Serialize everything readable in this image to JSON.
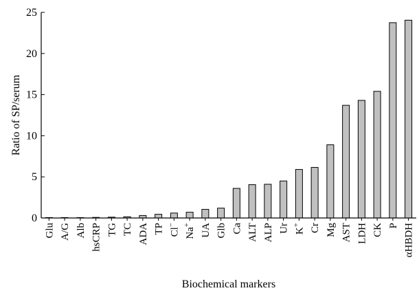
{
  "chart_data": {
    "type": "bar",
    "title": "",
    "xlabel": "Biochemical markers",
    "ylabel": "Ratio of SP/serum",
    "ylim": [
      0,
      25
    ],
    "yticks": [
      0,
      5,
      10,
      15,
      20,
      25
    ],
    "grid": false,
    "bar_color": "#c0c0c0",
    "categories": [
      {
        "label": "Glu"
      },
      {
        "label": "A/G"
      },
      {
        "label": "Alb"
      },
      {
        "label": "hsCRP"
      },
      {
        "label": "TG"
      },
      {
        "label": "TC"
      },
      {
        "label": "ADA"
      },
      {
        "label": "TP"
      },
      {
        "label": "Cl",
        "sup": "−"
      },
      {
        "label": "Na",
        "sup": "+"
      },
      {
        "label": "UA"
      },
      {
        "label": "Glb"
      },
      {
        "label": "Ca"
      },
      {
        "label": "ALT"
      },
      {
        "label": "ALP"
      },
      {
        "label": "Ur"
      },
      {
        "label": "K",
        "sup": "+"
      },
      {
        "label": "Cr"
      },
      {
        "label": "Mg"
      },
      {
        "label": "AST"
      },
      {
        "label": "LDH"
      },
      {
        "label": "CK"
      },
      {
        "label": "P"
      },
      {
        "label": "αHBDH"
      }
    ],
    "values": [
      0.02,
      0.04,
      0.05,
      0.07,
      0.1,
      0.15,
      0.3,
      0.45,
      0.6,
      0.7,
      1.05,
      1.2,
      3.6,
      4.05,
      4.1,
      4.5,
      5.9,
      6.15,
      8.9,
      13.7,
      14.3,
      15.4,
      23.75,
      24.05
    ]
  }
}
